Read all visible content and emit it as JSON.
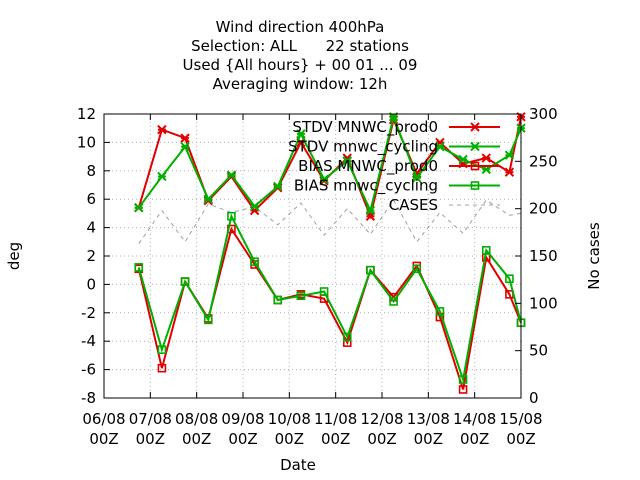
{
  "chart_data": {
    "type": "line",
    "title_lines": [
      "Wind direction 400hPa",
      "Selection: ALL      22 stations",
      "Used {All hours} + 00 01 ... 09",
      "Averaging window: 12h"
    ],
    "xlabel": "Date",
    "ylabel": "deg",
    "y2label": "No cases",
    "ylim": [
      -8,
      12
    ],
    "y_ticks": [
      -8,
      -6,
      -4,
      -2,
      0,
      2,
      4,
      6,
      8,
      10,
      12
    ],
    "y2lim": [
      0,
      300
    ],
    "y2_ticks": [
      0,
      50,
      100,
      150,
      200,
      250,
      300
    ],
    "x_tick_labels": [
      [
        "06/08",
        "00Z"
      ],
      [
        "07/08",
        "00Z"
      ],
      [
        "08/08",
        "00Z"
      ],
      [
        "09/08",
        "00Z"
      ],
      [
        "10/08",
        "00Z"
      ],
      [
        "11/08",
        "00Z"
      ],
      [
        "12/08",
        "00Z"
      ],
      [
        "13/08",
        "00Z"
      ],
      [
        "14/08",
        "00Z"
      ],
      [
        "15/08",
        "00Z"
      ]
    ],
    "x_hours": [
      18,
      30,
      42,
      54,
      66,
      78,
      90,
      102,
      114,
      126,
      138,
      150,
      162,
      174,
      186,
      198,
      210,
      216
    ],
    "x_range_hours": [
      0,
      216
    ],
    "legend_position": "top-right",
    "grid": true,
    "series": [
      {
        "name": "STDV MNWC_prod0",
        "color": "#e00000",
        "marker": "x-star",
        "axis": "y",
        "values": [
          5.4,
          10.9,
          10.3,
          5.9,
          7.6,
          5.2,
          6.8,
          10.0,
          7.3,
          8.9,
          4.8,
          11.6,
          7.8,
          10.0,
          8.5,
          8.9,
          7.9,
          11.8
        ]
      },
      {
        "name": "STDV mnwc_cycling",
        "color": "#00b000",
        "marker": "x-star",
        "axis": "y",
        "values": [
          5.4,
          7.6,
          9.7,
          6.0,
          7.7,
          5.5,
          6.9,
          10.6,
          7.4,
          8.7,
          5.2,
          11.8,
          7.5,
          9.7,
          8.8,
          8.1,
          9.1,
          11.0
        ]
      },
      {
        "name": "BIAS MNWC_prod0",
        "color": "#e00000",
        "marker": "square",
        "axis": "y",
        "values": [
          1.1,
          -5.9,
          0.2,
          -2.4,
          3.9,
          1.4,
          -1.1,
          -0.7,
          -1.0,
          -4.1,
          1.0,
          -0.9,
          1.3,
          -2.3,
          -7.4,
          1.9,
          -0.7,
          -2.7
        ]
      },
      {
        "name": "BIAS mnwc_cycling",
        "color": "#00b000",
        "marker": "square",
        "axis": "y",
        "values": [
          1.2,
          -4.6,
          0.2,
          -2.5,
          4.8,
          1.6,
          -1.1,
          -0.8,
          -0.5,
          -3.7,
          1.0,
          -1.2,
          1.1,
          -1.9,
          -6.7,
          2.4,
          0.4,
          -2.7
        ]
      },
      {
        "name": "CASES",
        "color": "#a0a0a0",
        "marker": "none",
        "dash": "4,4",
        "axis": "y2",
        "values": [
          163,
          198,
          165,
          205,
          196,
          202,
          183,
          206,
          172,
          200,
          173,
          209,
          165,
          196,
          174,
          209,
          193,
          195
        ]
      }
    ]
  }
}
